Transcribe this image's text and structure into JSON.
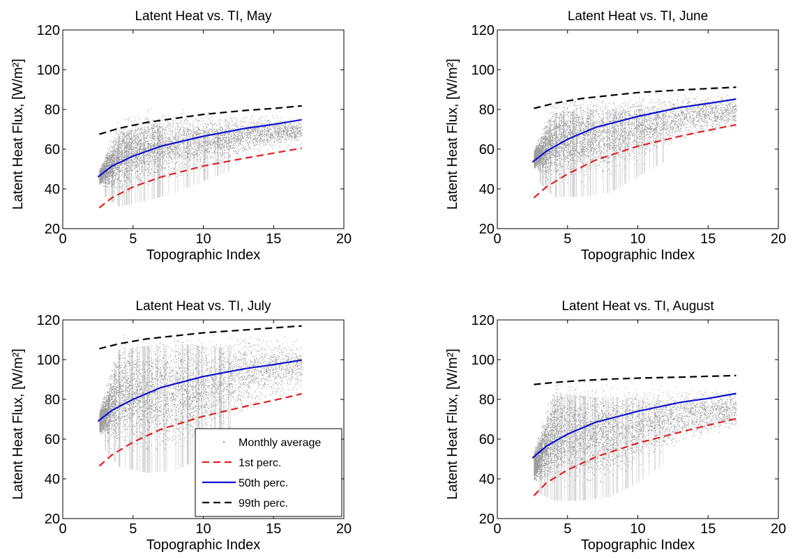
{
  "chart_data": [
    {
      "type": "scatter",
      "title": "Latent Heat vs. TI, May",
      "xlabel": "Topographic Index",
      "ylabel": "Latent Heat Flux, [W/m²]",
      "xlim": [
        0,
        20
      ],
      "ylim": [
        20,
        120
      ],
      "xticks": [
        0,
        5,
        10,
        15,
        20
      ],
      "yticks": [
        20,
        40,
        60,
        80,
        100,
        120
      ],
      "grid": false,
      "scatter_band": {
        "x": [
          2.6,
          4,
          6,
          8,
          10,
          12,
          14,
          17
        ],
        "lower": [
          42,
          35,
          38,
          42,
          48,
          53,
          58,
          62
        ],
        "upper": [
          50,
          78,
          82,
          82,
          80,
          78,
          78,
          76
        ]
      },
      "series": [
        {
          "name": "1st perc.",
          "color": "#e02020",
          "dash": "dashed",
          "x": [
            2.6,
            3.5,
            5,
            7,
            10,
            13,
            15,
            17
          ],
          "y": [
            30.5,
            35.5,
            41,
            46,
            51.5,
            55.5,
            58,
            60.5
          ]
        },
        {
          "name": "50th perc.",
          "color": "#1010d0",
          "dash": "solid",
          "x": [
            2.5,
            3.5,
            5,
            7,
            10,
            13,
            15,
            17
          ],
          "y": [
            46,
            51.5,
            56.5,
            61.5,
            66.5,
            70.5,
            72.5,
            74.8
          ]
        },
        {
          "name": "99th perc.",
          "color": "#000000",
          "dash": "dashed",
          "x": [
            2.6,
            4,
            6,
            8,
            10,
            13,
            15,
            17
          ],
          "y": [
            67.5,
            70.5,
            73.5,
            75.5,
            77.5,
            79.5,
            80.5,
            81.8
          ]
        }
      ]
    },
    {
      "type": "scatter",
      "title": "Latent Heat vs. TI, June",
      "xlabel": "Topographic Index",
      "ylabel": "Latent Heat Flux, [W/m²]",
      "xlim": [
        0,
        20
      ],
      "ylim": [
        20,
        120
      ],
      "xticks": [
        0,
        5,
        10,
        15,
        20
      ],
      "yticks": [
        20,
        40,
        60,
        80,
        100,
        120
      ],
      "grid": false,
      "scatter_band": {
        "x": [
          2.6,
          4,
          6,
          8,
          10,
          12,
          14,
          17
        ],
        "lower": [
          50,
          40,
          40,
          42,
          50,
          58,
          64,
          70
        ],
        "upper": [
          60,
          88,
          90,
          90,
          90,
          90,
          90,
          88
        ]
      },
      "series": [
        {
          "name": "1st perc.",
          "color": "#e02020",
          "dash": "dashed",
          "x": [
            2.6,
            3.5,
            5,
            7,
            10,
            13,
            15,
            17
          ],
          "y": [
            35.5,
            41,
            47.5,
            54.5,
            61.5,
            66.5,
            69.5,
            72.3
          ]
        },
        {
          "name": "50th perc.",
          "color": "#1010d0",
          "dash": "solid",
          "x": [
            2.5,
            3.5,
            5,
            7,
            10,
            13,
            15,
            17
          ],
          "y": [
            53.5,
            59,
            65,
            71,
            76.5,
            81,
            83,
            85.2
          ]
        },
        {
          "name": "99th perc.",
          "color": "#000000",
          "dash": "dashed",
          "x": [
            2.6,
            4,
            6,
            8,
            10,
            13,
            15,
            17
          ],
          "y": [
            80.5,
            83,
            85.5,
            87,
            88.5,
            89.8,
            90.5,
            91.2
          ]
        }
      ]
    },
    {
      "type": "scatter",
      "title": "Latent Heat vs. TI, July",
      "xlabel": "Topographic Index",
      "ylabel": "Latent Heat Flux, [W/m²]",
      "xlim": [
        0,
        20
      ],
      "ylim": [
        20,
        120
      ],
      "xticks": [
        0,
        5,
        10,
        15,
        20
      ],
      "yticks": [
        20,
        40,
        60,
        80,
        100,
        120
      ],
      "grid": false,
      "scatter_band": {
        "x": [
          2.6,
          4,
          6,
          8,
          10,
          12,
          14,
          17
        ],
        "lower": [
          62,
          50,
          47,
          48,
          55,
          65,
          75,
          82
        ],
        "upper": [
          75,
          115,
          117,
          118,
          117,
          116,
          115,
          112
        ]
      },
      "series": [
        {
          "name": "1st perc.",
          "color": "#e02020",
          "dash": "dashed",
          "x": [
            2.6,
            3.5,
            5,
            7,
            10,
            13,
            15,
            17
          ],
          "y": [
            46.5,
            52,
            58.5,
            65,
            71.5,
            76.5,
            79.5,
            82.8
          ]
        },
        {
          "name": "50th perc.",
          "color": "#1010d0",
          "dash": "solid",
          "x": [
            2.5,
            3.5,
            5,
            7,
            10,
            13,
            15,
            17
          ],
          "y": [
            69,
            74.5,
            80,
            86,
            91.5,
            95.5,
            97.5,
            99.8
          ]
        },
        {
          "name": "99th perc.",
          "color": "#000000",
          "dash": "dashed",
          "x": [
            2.6,
            4,
            6,
            8,
            10,
            13,
            15,
            17
          ],
          "y": [
            105.5,
            108,
            110.5,
            112,
            113.5,
            115,
            116,
            117
          ]
        }
      ],
      "legend": {
        "placement": "bottom-right",
        "entries": [
          "Monthly average",
          "1st perc.",
          "50th perc.",
          "99th perc."
        ]
      }
    },
    {
      "type": "scatter",
      "title": "Latent Heat vs. TI, August",
      "xlabel": "Topographic Index",
      "ylabel": "Latent Heat Flux, [W/m²]",
      "xlim": [
        0,
        20
      ],
      "ylim": [
        20,
        120
      ],
      "xticks": [
        0,
        5,
        10,
        15,
        20
      ],
      "yticks": [
        20,
        40,
        60,
        80,
        100,
        120
      ],
      "grid": false,
      "scatter_band": {
        "x": [
          2.6,
          4,
          6,
          8,
          10,
          12,
          14,
          17
        ],
        "lower": [
          38,
          33,
          33,
          35,
          42,
          52,
          58,
          64
        ],
        "upper": [
          55,
          92,
          92,
          90,
          90,
          88,
          88,
          86
        ]
      },
      "series": [
        {
          "name": "1st perc.",
          "color": "#e02020",
          "dash": "dashed",
          "x": [
            2.6,
            3.5,
            5,
            7,
            10,
            13,
            15,
            17
          ],
          "y": [
            31.5,
            38,
            44.5,
            51,
            58,
            63.5,
            67,
            70.3
          ]
        },
        {
          "name": "50th perc.",
          "color": "#1010d0",
          "dash": "solid",
          "x": [
            2.5,
            3.5,
            5,
            7,
            10,
            13,
            15,
            17
          ],
          "y": [
            50.5,
            56.5,
            62.5,
            68.5,
            74,
            78.5,
            80.5,
            83
          ]
        },
        {
          "name": "99th perc.",
          "color": "#000000",
          "dash": "dashed",
          "x": [
            2.6,
            4,
            6,
            8,
            10,
            13,
            15,
            17
          ],
          "y": [
            87.5,
            88.5,
            89.5,
            90.2,
            90.7,
            91.2,
            91.6,
            92
          ]
        }
      ]
    }
  ],
  "colors": {
    "scatter": "#8a8a8a",
    "first_perc": "#e02020",
    "median": "#1010d0",
    "ninety_ninth": "#000000"
  }
}
